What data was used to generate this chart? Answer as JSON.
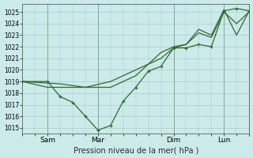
{
  "title": "Pression niveau de la mer( hPa )",
  "bg_color": "#cceaea",
  "grid_color": "#aacccc",
  "line_color": "#2d6a2d",
  "ylim": [
    1014.5,
    1025.7
  ],
  "yticks": [
    1015,
    1016,
    1017,
    1018,
    1019,
    1020,
    1021,
    1022,
    1023,
    1024,
    1025
  ],
  "xlim": [
    0,
    9.0
  ],
  "xtick_labels": [
    "Sam",
    "Mar",
    "Dim",
    "Lun"
  ],
  "xtick_positions": [
    1.0,
    3.0,
    6.0,
    8.0
  ],
  "series": [
    {
      "x": [
        0.0,
        1.0,
        1.5,
        2.0,
        2.5,
        3.0,
        3.5,
        4.0,
        4.5,
        5.0,
        5.5,
        6.0,
        6.5,
        7.0,
        7.5,
        8.0,
        8.5,
        9.0
      ],
      "y": [
        1019.0,
        1019.0,
        1017.7,
        1017.2,
        1016.0,
        1014.8,
        1015.2,
        1017.3,
        1018.5,
        1019.9,
        1020.3,
        1021.9,
        1021.9,
        1022.2,
        1022.0,
        1025.1,
        1025.3,
        1025.1
      ]
    },
    {
      "x": [
        0.0,
        1.5,
        2.5,
        3.5,
        4.5,
        5.0,
        5.5,
        6.0,
        6.5,
        7.0,
        7.5,
        8.0,
        8.5,
        9.0
      ],
      "y": [
        1019.0,
        1018.8,
        1018.5,
        1018.5,
        1019.5,
        1020.5,
        1021.0,
        1021.9,
        1022.2,
        1023.5,
        1023.0,
        1025.2,
        1023.0,
        1025.1
      ]
    },
    {
      "x": [
        0.0,
        1.0,
        1.5,
        2.5,
        3.5,
        4.5,
        5.0,
        5.5,
        6.0,
        6.5,
        7.0,
        7.5,
        8.0,
        8.5,
        9.0
      ],
      "y": [
        1019.0,
        1018.5,
        1018.5,
        1018.5,
        1019.0,
        1020.0,
        1020.5,
        1021.5,
        1022.0,
        1022.2,
        1023.2,
        1022.8,
        1025.0,
        1024.0,
        1025.0
      ]
    }
  ],
  "marker_x": [
    0.0,
    1.0,
    1.5,
    2.0,
    2.5,
    3.0,
    3.5,
    4.0,
    4.5,
    5.0,
    5.5,
    6.0,
    6.5,
    7.0,
    7.5,
    8.0,
    8.5,
    9.0
  ],
  "marker_y": [
    1019.0,
    1019.0,
    1017.7,
    1017.2,
    1016.0,
    1014.8,
    1015.2,
    1017.3,
    1018.5,
    1019.9,
    1020.3,
    1021.9,
    1021.9,
    1022.2,
    1022.0,
    1025.1,
    1025.3,
    1025.1
  ]
}
